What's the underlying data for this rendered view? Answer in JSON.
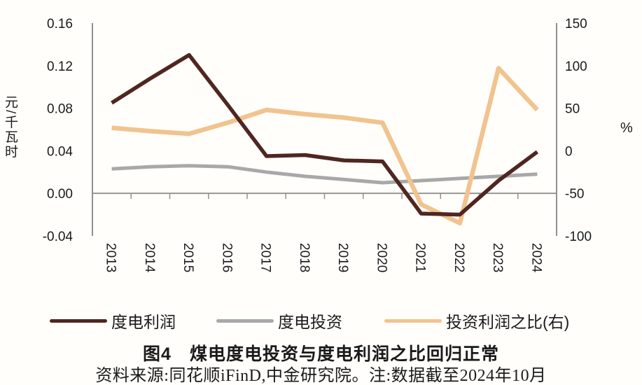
{
  "figure": {
    "title": "图4　煤电度电投资与度电利润之比回归正常",
    "source_note": "资料来源:同花顺iFinD,中金研究院。注:数据截至2024年10月"
  },
  "colors": {
    "profit": "#4F2620",
    "investment": "#A8A8A8",
    "ratio": "#F1C38E",
    "axis": "#909090",
    "text": "#1A1A1A"
  },
  "chart_data": {
    "type": "line",
    "grid": false,
    "legend_position": "bottom",
    "categories": [
      "2013",
      "2014",
      "2015",
      "2016",
      "2017",
      "2018",
      "2019",
      "2020",
      "2021",
      "2022",
      "2023",
      "2024"
    ],
    "series": [
      {
        "key": "profit",
        "name": "度电利润",
        "axis": "left",
        "color": "#4F2620",
        "values": [
          0.085,
          0.108,
          0.13,
          0.083,
          0.035,
          0.036,
          0.031,
          0.03,
          -0.019,
          -0.02,
          0.012,
          0.039
        ]
      },
      {
        "key": "investment",
        "name": "度电投资",
        "axis": "left",
        "color": "#A8A8A8",
        "values": [
          0.023,
          0.025,
          0.026,
          0.025,
          0.02,
          0.016,
          0.013,
          0.01,
          0.012,
          0.014,
          0.016,
          0.018
        ]
      },
      {
        "key": "ratio",
        "name": "投资利润之比(右)",
        "axis": "right",
        "color": "#F1C38E",
        "values": [
          27,
          23,
          20,
          33,
          48,
          43,
          39,
          33,
          -63,
          -85,
          97,
          48
        ]
      }
    ],
    "left_axis": {
      "label": "元/千瓦时",
      "min": -0.04,
      "max": 0.16,
      "ticks": [
        0.16,
        0.12,
        0.08,
        0.04,
        0.0,
        -0.04
      ],
      "tick_labels": [
        "0.16",
        "0.12",
        "0.08",
        "0.04",
        "0.00",
        "-0.04"
      ]
    },
    "right_axis": {
      "label": "%",
      "min": -100,
      "max": 150,
      "ticks": [
        150,
        100,
        50,
        0,
        -50,
        -100
      ],
      "tick_labels": [
        "150",
        "100",
        "50",
        "0",
        "-50",
        "-100"
      ]
    }
  }
}
